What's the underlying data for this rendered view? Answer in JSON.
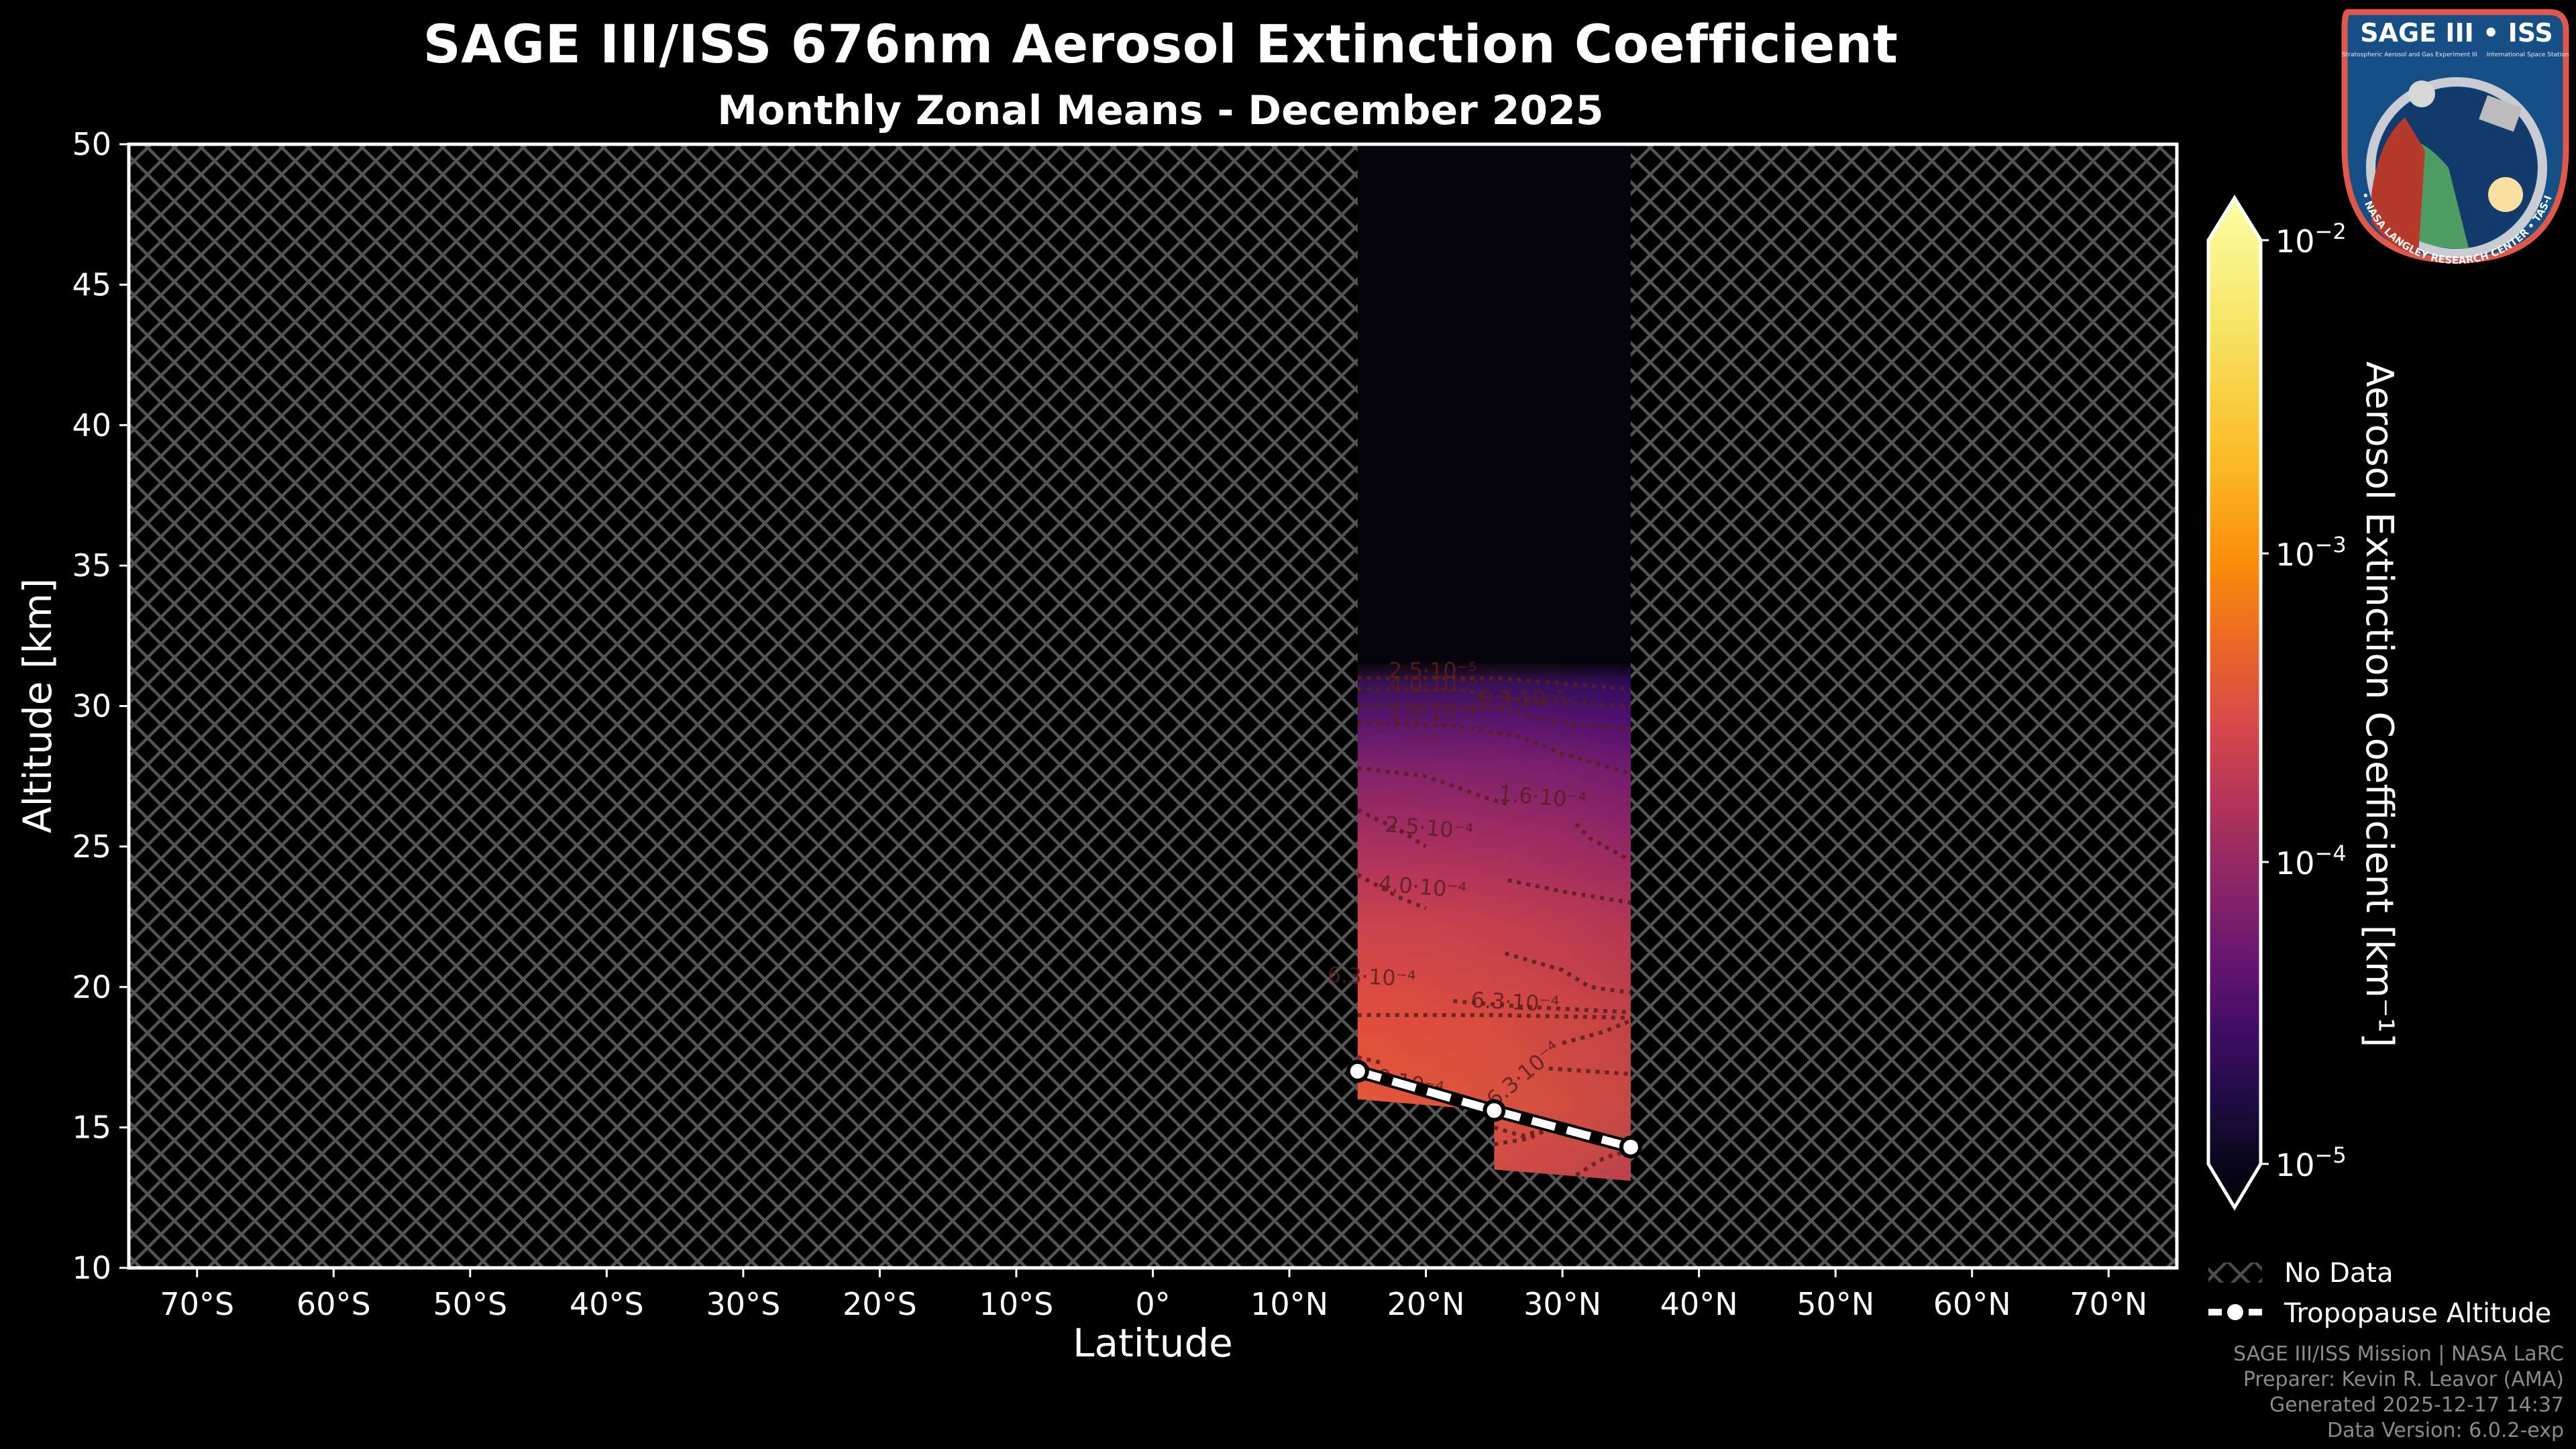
{
  "header": {
    "title": "SAGE III/ISS 676nm Aerosol Extinction Coefficient",
    "subtitle": "Monthly Zonal Means - December 2025"
  },
  "logo": {
    "top_text": "SAGE III • ISS",
    "left_small": "Stratospheric Aerosol and Gas Experiment III",
    "right_small": "International Space Station",
    "ring_text": "BALL • NASA LANGLEY RESEARCH CENTER • TAS-I • ESA",
    "colors": {
      "border": "#e0584a",
      "field": "#164f86",
      "ring": "#c9cdd3",
      "ocean": "#0f5a8f",
      "land": "#4e9e64"
    }
  },
  "legend": {
    "items": [
      {
        "label": "No Data",
        "symbol": "hatch"
      },
      {
        "label": "Tropopause Altitude",
        "symbol": "dashed-line-marker"
      }
    ]
  },
  "credits": {
    "line1": "SAGE III/ISS Mission | NASA LaRC",
    "line2": "Preparer: Kevin R. Leavor (AMA)",
    "line3": "Generated 2025-12-17 14:37",
    "line4": "Data Version: 6.0.2-exp"
  },
  "colors": {
    "background": "#000000",
    "axis": "#ffffff",
    "hatch": "#555555",
    "tropopause_line": "#ffffff",
    "contour": "#5a1e20",
    "credits_text": "#8a8a8a"
  },
  "chart_data": {
    "type": "heatmap",
    "title": "SAGE III/ISS 676nm Aerosol Extinction Coefficient",
    "subtitle": "Monthly Zonal Means - December 2025",
    "xlabel": "Latitude",
    "ylabel": "Altitude [km]",
    "xlim": [
      -75,
      75
    ],
    "ylim": [
      10,
      50
    ],
    "x_ticks": [
      -70,
      -60,
      -50,
      -40,
      -30,
      -20,
      -10,
      0,
      10,
      20,
      30,
      40,
      50,
      60,
      70
    ],
    "x_tick_labels": [
      "70°S",
      "60°S",
      "50°S",
      "40°S",
      "30°S",
      "20°S",
      "10°S",
      "0°",
      "10°N",
      "20°N",
      "30°N",
      "40°N",
      "50°N",
      "60°N",
      "70°N"
    ],
    "y_ticks": [
      10,
      15,
      20,
      25,
      30,
      35,
      40,
      45,
      50
    ],
    "y_tick_labels": [
      "10",
      "15",
      "20",
      "25",
      "30",
      "35",
      "40",
      "45",
      "50"
    ],
    "grid": false,
    "colormap": "inferno",
    "colorbar": {
      "label": "Aerosol Extinction Coefficient [km⁻¹]",
      "scale": "log",
      "range": [
        1e-05,
        0.01
      ],
      "extend": "both",
      "ticks": [
        0.01,
        0.001,
        0.0001,
        1e-05
      ],
      "tick_labels": [
        {
          "base": "10",
          "exp": "−2"
        },
        {
          "base": "10",
          "exp": "−3"
        },
        {
          "base": "10",
          "exp": "−4"
        },
        {
          "base": "10",
          "exp": "−5"
        }
      ]
    },
    "no_data_regions": [
      {
        "lat_range": [
          -75,
          15
        ],
        "note": "hatched"
      },
      {
        "lat_range": [
          35,
          75
        ],
        "note": "hatched"
      }
    ],
    "data_region": {
      "lat_range": [
        15,
        35
      ],
      "columns": [
        {
          "lat_range": [
            15,
            25
          ],
          "bottom_km": [
            16.0,
            15.6
          ]
        },
        {
          "lat_range": [
            25,
            35
          ],
          "bottom_km": [
            13.5,
            13.1
          ]
        }
      ],
      "valid_top_km": 31.5,
      "above_valid_value": "below 1e-5 (near black)",
      "vertical_profile_approx": [
        {
          "alt_km": 31,
          "value": 2.5e-05
        },
        {
          "alt_km": 30.5,
          "value": 4e-05
        },
        {
          "alt_km": 30,
          "value": 6.3e-05
        },
        {
          "alt_km": 29.5,
          "value": 0.0001
        },
        {
          "alt_km": 27.5,
          "value": 0.00016
        },
        {
          "alt_km": 25.5,
          "value": 0.00025
        },
        {
          "alt_km": 23.5,
          "value": 0.0004
        },
        {
          "alt_km": 19.5,
          "value": 0.00063
        },
        {
          "alt_km": 16.5,
          "value": 0.0004
        }
      ]
    },
    "contour_labels": [
      {
        "text": "2.5·10⁻⁵",
        "lat": 20.5,
        "alt": 31.0,
        "rot": 0
      },
      {
        "text": "4.0·10⁻⁵",
        "lat": 20.5,
        "alt": 30.5,
        "rot": 0
      },
      {
        "text": "6.3·10⁻⁵",
        "lat": 27.0,
        "alt": 30.0,
        "rot": 0
      },
      {
        "text": "1.0·10⁻⁴",
        "lat": 20.5,
        "alt": 29.5,
        "rot": 0
      },
      {
        "text": "1.6·10⁻⁴",
        "lat": 28.5,
        "alt": 26.5,
        "rot": 5
      },
      {
        "text": "2.5·10⁻⁴",
        "lat": 20.2,
        "alt": 25.4,
        "rot": 5
      },
      {
        "text": "4.0·10⁻⁴",
        "lat": 19.7,
        "alt": 23.3,
        "rot": 5
      },
      {
        "text": "6.3·10⁻⁴",
        "lat": 16.0,
        "alt": 20.1,
        "rot": 3
      },
      {
        "text": "6.3·10⁻⁴",
        "lat": 26.5,
        "alt": 19.2,
        "rot": 3
      },
      {
        "text": "6.3·10⁻⁴",
        "lat": 27.5,
        "alt": 16.7,
        "rot": -40
      },
      {
        "text": "4.0·10⁻⁴",
        "lat": 18.0,
        "alt": 16.4,
        "rot": 12
      }
    ],
    "series": [
      {
        "name": "Tropopause Altitude",
        "type": "line",
        "style": "dashed",
        "marker": "circle",
        "x": [
          15,
          25,
          35
        ],
        "y": [
          17.0,
          15.6,
          14.3
        ]
      }
    ],
    "legend": [
      "No Data",
      "Tropopause Altitude"
    ],
    "legend_position": "lower right, outside axes"
  }
}
